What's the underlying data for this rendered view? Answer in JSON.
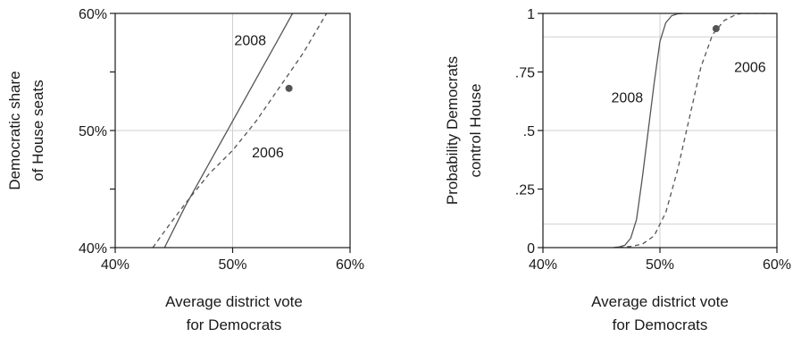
{
  "chart_data": [
    {
      "type": "line",
      "xlabel_lines": [
        "Average district vote",
        "for Democrats"
      ],
      "ylabel_lines": [
        "Democratic share",
        "of House seats"
      ],
      "xlim": [
        40,
        60
      ],
      "ylim": [
        40,
        60
      ],
      "x_ticks": [
        {
          "value": 40,
          "label": "40%"
        },
        {
          "value": 50,
          "label": "50%"
        },
        {
          "value": 60,
          "label": "60%"
        }
      ],
      "y_ticks": [
        {
          "value": 40,
          "label": "40%"
        },
        {
          "value": 45,
          "label": ""
        },
        {
          "value": 50,
          "label": "50%"
        },
        {
          "value": 55,
          "label": ""
        },
        {
          "value": 60,
          "label": "60%"
        }
      ],
      "gridlines_x": [
        50
      ],
      "gridlines_y": [
        50
      ],
      "series": [
        {
          "name": "2008",
          "style": "solid",
          "points": [
            [
              44.2,
              40
            ],
            [
              46,
              43.6
            ],
            [
              48,
              47.2
            ],
            [
              50,
              50.8
            ],
            [
              52,
              54.4
            ],
            [
              54,
              58
            ],
            [
              55.1,
              60
            ]
          ]
        },
        {
          "name": "2006",
          "style": "dashed",
          "points": [
            [
              43.2,
              40
            ],
            [
              44.5,
              41.8
            ],
            [
              46,
              43.8
            ],
            [
              48,
              46.3
            ],
            [
              50,
              48.3
            ],
            [
              52,
              50.8
            ],
            [
              54,
              53.7
            ],
            [
              56,
              56.6
            ],
            [
              58,
              60
            ]
          ]
        }
      ],
      "marker_points": [
        [
          54.8,
          53.6
        ]
      ],
      "series_labels": [
        {
          "series": "2008",
          "x": 51.5,
          "y": 57.3
        },
        {
          "series": "2006",
          "x": 53.0,
          "y": 47.7
        }
      ]
    },
    {
      "type": "line",
      "xlabel_lines": [
        "Average district vote",
        "for Democrats"
      ],
      "ylabel_lines": [
        "Probability Democrats",
        "control House"
      ],
      "xlim": [
        40,
        60
      ],
      "ylim": [
        0,
        1
      ],
      "x_ticks": [
        {
          "value": 40,
          "label": "40%"
        },
        {
          "value": 50,
          "label": "50%"
        },
        {
          "value": 60,
          "label": "60%"
        }
      ],
      "y_ticks": [
        {
          "value": 0,
          "label": "0"
        },
        {
          "value": 0.25,
          "label": ".25"
        },
        {
          "value": 0.5,
          "label": ".5"
        },
        {
          "value": 0.75,
          "label": ".75"
        },
        {
          "value": 1,
          "label": "1"
        }
      ],
      "gridlines_x": [
        50
      ],
      "gridlines_y": [
        0.1,
        0.5,
        0.9
      ],
      "series": [
        {
          "name": "2008",
          "style": "solid",
          "points": [
            [
              46,
              0
            ],
            [
              46.5,
              0.003
            ],
            [
              47,
              0.01
            ],
            [
              47.5,
              0.04
            ],
            [
              48,
              0.12
            ],
            [
              48.5,
              0.3
            ],
            [
              49,
              0.5
            ],
            [
              49.5,
              0.7
            ],
            [
              50,
              0.88
            ],
            [
              50.5,
              0.96
            ],
            [
              51,
              0.99
            ],
            [
              51.5,
              0.998
            ],
            [
              52,
              1
            ],
            [
              60,
              1
            ]
          ]
        },
        {
          "name": "2006",
          "style": "dashed",
          "points": [
            [
              46.5,
              0
            ],
            [
              47.5,
              0.005
            ],
            [
              48.5,
              0.015
            ],
            [
              49.5,
              0.05
            ],
            [
              50.5,
              0.15
            ],
            [
              51.5,
              0.33
            ],
            [
              52.5,
              0.55
            ],
            [
              53.5,
              0.77
            ],
            [
              54.5,
              0.91
            ],
            [
              55.5,
              0.97
            ],
            [
              56.5,
              0.995
            ],
            [
              57,
              1
            ],
            [
              60,
              1
            ]
          ]
        }
      ],
      "marker_points": [
        [
          54.8,
          0.935
        ]
      ],
      "series_labels": [
        {
          "series": "2008",
          "x": 47.2,
          "y": 0.62
        },
        {
          "series": "2006",
          "x": 57.7,
          "y": 0.75
        }
      ]
    }
  ]
}
